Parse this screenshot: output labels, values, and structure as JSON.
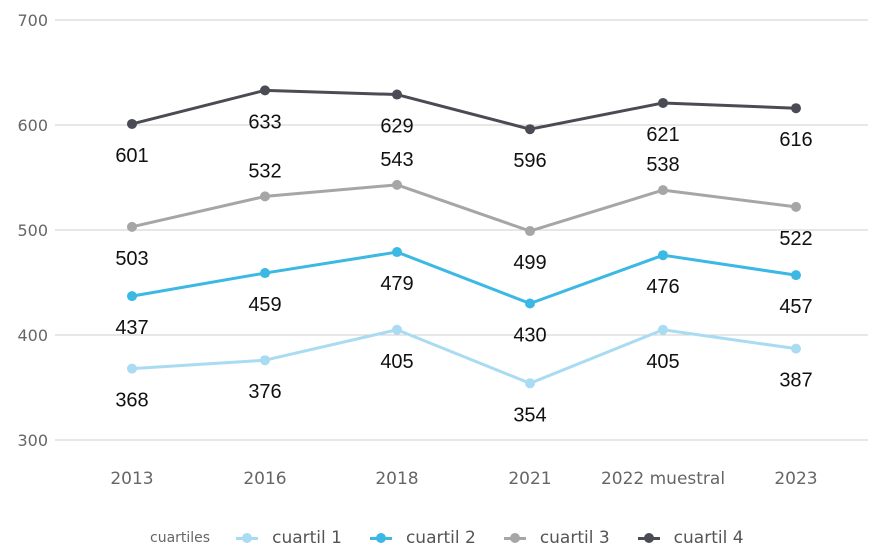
{
  "chart_data": {
    "type": "line",
    "categories": [
      "2013",
      "2016",
      "2018",
      "2021",
      "2022 muestral",
      "2023"
    ],
    "ylim": [
      300,
      700
    ],
    "yticks": [
      300,
      400,
      500,
      600,
      700
    ],
    "grid": true,
    "legend_position": "bottom",
    "legend_title": "cuartiles",
    "series": [
      {
        "name": "cuartil 1",
        "color": "#a9dbf2",
        "values": [
          368,
          376,
          405,
          354,
          405,
          387
        ],
        "label_positions": [
          "below",
          "below",
          "below",
          "below",
          "below",
          "below"
        ]
      },
      {
        "name": "cuartil 2",
        "color": "#3bb8e3",
        "values": [
          437,
          459,
          479,
          430,
          476,
          457
        ],
        "label_positions": [
          "below",
          "below",
          "below",
          "below",
          "below",
          "below"
        ]
      },
      {
        "name": "cuartil 3",
        "color": "#a6a6a6",
        "values": [
          503,
          532,
          543,
          499,
          538,
          522
        ],
        "label_positions": [
          "below",
          "above",
          "above",
          "below",
          "above",
          "below"
        ]
      },
      {
        "name": "cuartil 4",
        "color": "#4a4b55",
        "values": [
          601,
          633,
          629,
          596,
          621,
          616
        ],
        "label_positions": [
          "below",
          "below",
          "below",
          "below",
          "below",
          "below"
        ]
      }
    ]
  }
}
